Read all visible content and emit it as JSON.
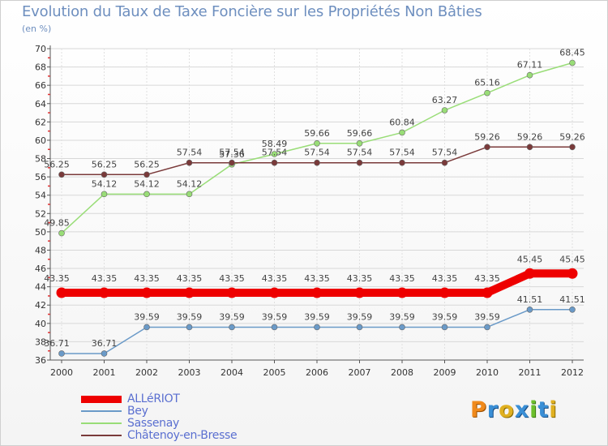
{
  "header": {
    "title": "Evolution du Taux de Taxe Foncière sur les Propriétés Non Bâties",
    "unit": "(en %)"
  },
  "chart_data": {
    "type": "line",
    "title": "Evolution du Taux de Taxe Foncière sur les Propriétés Non Bâties",
    "ylabel": "(en %)",
    "xlabel": "",
    "ylim": [
      36,
      70
    ],
    "yticks": [
      36,
      38,
      40,
      42,
      44,
      46,
      48,
      50,
      52,
      54,
      56,
      58,
      60,
      62,
      64,
      66,
      68,
      70
    ],
    "categories": [
      "2000",
      "2001",
      "2002",
      "2003",
      "2004",
      "2005",
      "2006",
      "2007",
      "2008",
      "2009",
      "2010",
      "2011",
      "2012"
    ],
    "grid": true,
    "legend": "bottom-left",
    "series": [
      {
        "name": "ALLéRIOT",
        "color": "#ee0000",
        "values": [
          43.35,
          43.35,
          43.35,
          43.35,
          43.35,
          43.35,
          43.35,
          43.35,
          43.35,
          43.35,
          43.35,
          45.45,
          45.45
        ],
        "labels": [
          "43.35",
          "43.35",
          "43.35",
          "43.35",
          "43.35",
          "43.35",
          "43.35",
          "43.35",
          "43.35",
          "43.35",
          "43.35",
          "45.45",
          "45.45"
        ]
      },
      {
        "name": "Bey",
        "color": "#6a9ac8",
        "values": [
          36.71,
          36.71,
          39.59,
          39.59,
          39.59,
          39.59,
          39.59,
          39.59,
          39.59,
          39.59,
          39.59,
          41.51,
          41.51
        ],
        "labels": [
          "36.71",
          "36.71",
          "39.59",
          "39.59",
          "39.59",
          "39.59",
          "39.59",
          "39.59",
          "39.59",
          "39.59",
          "39.59",
          "41.51",
          "41.51"
        ]
      },
      {
        "name": "Sassenay",
        "color": "#99dd77",
        "values": [
          49.85,
          54.12,
          54.12,
          54.12,
          57.36,
          58.49,
          59.66,
          59.66,
          60.84,
          63.27,
          65.16,
          67.11,
          68.45
        ],
        "labels": [
          "49.85",
          "54.12",
          "54.12",
          "54.12",
          "57.36",
          "58.49",
          "59.66",
          "59.66",
          "60.84",
          "63.27",
          "65.16",
          "67.11",
          "68.45"
        ]
      },
      {
        "name": "Châtenoy-en-Bresse",
        "color": "#7a3a3a",
        "values": [
          56.25,
          56.25,
          56.25,
          57.54,
          57.54,
          57.54,
          57.54,
          57.54,
          57.54,
          57.54,
          59.26,
          59.26,
          59.26
        ],
        "labels": [
          "56.25",
          "56.25",
          "56.25",
          "57.54",
          "57.54",
          "57.54",
          "57.54",
          "57.54",
          "57.54",
          "57.54",
          "59.26",
          "59.26",
          "59.26"
        ]
      }
    ]
  },
  "brand": {
    "logo_text": "Proxiti"
  }
}
